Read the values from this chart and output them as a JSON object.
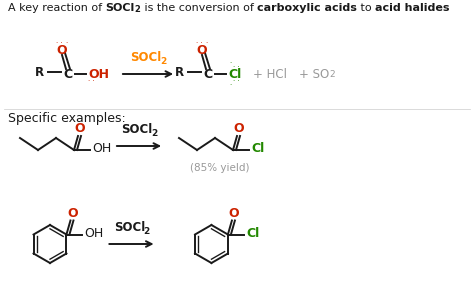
{
  "bg_color": "#ffffff",
  "colors": {
    "black": "#1a1a1a",
    "red": "#cc2200",
    "green": "#228800",
    "orange": "#ff8800",
    "gray": "#999999"
  },
  "figsize": [
    4.74,
    3.06
  ],
  "dpi": 100,
  "title_segments": [
    [
      "A key reaction of ",
      "normal",
      8.0
    ],
    [
      "SOCl",
      "bold",
      8.0
    ],
    [
      "2",
      "bold",
      6.0,
      -1.5
    ],
    [
      " is the conversion of ",
      "normal",
      8.0
    ],
    [
      "carboxylic acids",
      "bold",
      8.0
    ],
    [
      " to ",
      "normal",
      8.0
    ],
    [
      "acid halides",
      "bold",
      8.0
    ]
  ],
  "arrow_style": "->",
  "lw": 1.4
}
